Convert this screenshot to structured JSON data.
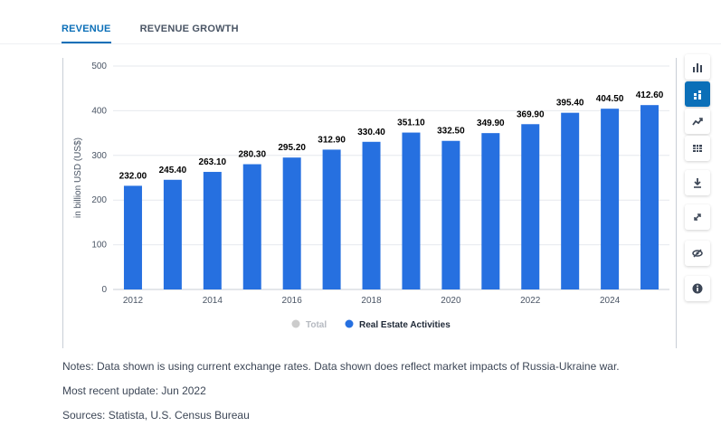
{
  "tabs": [
    {
      "label": "REVENUE",
      "active": true
    },
    {
      "label": "REVENUE GROWTH",
      "active": false
    }
  ],
  "toolbar": {
    "tools": [
      {
        "name": "bar-chart-icon",
        "active": false
      },
      {
        "name": "stacked-bar-icon",
        "active": true
      },
      {
        "name": "trend-line-icon",
        "active": false
      },
      {
        "name": "table-icon",
        "active": false
      },
      {
        "name": "download-icon",
        "active": false
      },
      {
        "name": "expand-icon",
        "active": false
      },
      {
        "name": "hide-icon",
        "active": false
      },
      {
        "name": "info-icon",
        "active": false
      }
    ]
  },
  "chart_data": {
    "type": "bar",
    "x": [
      2012,
      2013,
      2014,
      2015,
      2016,
      2017,
      2018,
      2019,
      2020,
      2021,
      2022,
      2023,
      2024,
      2025
    ],
    "x_tick_labels": [
      "2012",
      "2014",
      "2016",
      "2018",
      "2020",
      "2022",
      "2024"
    ],
    "series": [
      {
        "name": "Real Estate Activities",
        "color": "#2670e0",
        "values": [
          232.0,
          245.4,
          263.1,
          280.3,
          295.2,
          312.9,
          330.4,
          351.1,
          332.5,
          349.9,
          369.9,
          395.4,
          404.5,
          412.6
        ]
      }
    ],
    "data_labels": [
      "232.00",
      "245.40",
      "263.10",
      "280.30",
      "295.20",
      "312.90",
      "330.40",
      "351.10",
      "332.50",
      "349.90",
      "369.90",
      "395.40",
      "404.50",
      "412.60"
    ],
    "ylabel": "in billion USD (US$)",
    "ylim": [
      0,
      500
    ],
    "y_ticks": [
      0,
      100,
      200,
      300,
      400,
      500
    ],
    "grid": true,
    "legend": [
      {
        "label": "Total",
        "color": "#cccccc",
        "disabled": true
      },
      {
        "label": "Real Estate Activities",
        "color": "#2670e0",
        "disabled": false
      }
    ],
    "legend_position": "bottom"
  },
  "notes": {
    "line1": "Notes: Data shown is using current exchange rates. Data shown does reflect market impacts of Russia-Ukraine war.",
    "line2": "Most recent update: Jun 2022",
    "line3": "Sources: Statista, U.S. Census Bureau"
  }
}
